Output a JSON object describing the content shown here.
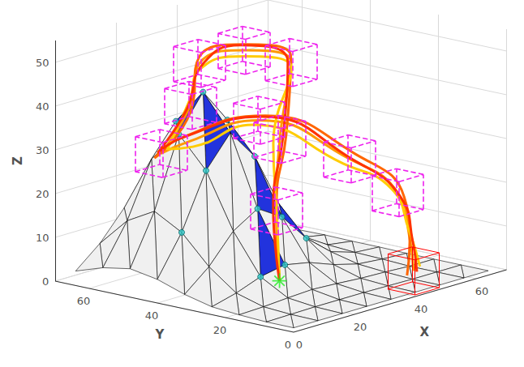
{
  "chart_data": {
    "type": "surface3d_trajectories",
    "xlabel": "X",
    "ylabel": "Y",
    "zlabel": "Z",
    "xlim": [
      0,
      70
    ],
    "ylim": [
      0,
      70
    ],
    "zlim": [
      0,
      55
    ],
    "xticks": [
      0,
      20,
      40,
      60
    ],
    "yticks": [
      0,
      20,
      40,
      60
    ],
    "zticks": [
      0,
      10,
      20,
      30,
      40,
      50
    ],
    "grid": true,
    "surface": {
      "color": "#f0f0f0",
      "x": [
        0,
        8,
        16,
        24,
        32,
        40,
        48,
        56,
        64
      ],
      "y": [
        0,
        8,
        16,
        24,
        32,
        40,
        48,
        56,
        64
      ],
      "z": [
        [
          1,
          1,
          1,
          1,
          1,
          1,
          1,
          1,
          1
        ],
        [
          1,
          1.1,
          1.2,
          1.2,
          1.2,
          1.1,
          1,
          1,
          1
        ],
        [
          1.3,
          1.5,
          1.9,
          2.2,
          1.9,
          1.5,
          1.3,
          1,
          1
        ],
        [
          1.8,
          3.3,
          5.4,
          6.5,
          5.4,
          3.3,
          1.8,
          1.3,
          1
        ],
        [
          3.3,
          8,
          14.5,
          18,
          14.5,
          8,
          3.3,
          1.5,
          1.1
        ],
        [
          5.4,
          14.5,
          27,
          34,
          27,
          14.5,
          5.4,
          1.9,
          1.1
        ],
        [
          6.5,
          18,
          34,
          42,
          34,
          18,
          6.5,
          2.2,
          1.2
        ],
        [
          5.4,
          14.5,
          27,
          34,
          27,
          14.5,
          5.4,
          1.9,
          1.1
        ],
        [
          3.3,
          8,
          14.5,
          18,
          14.5,
          8,
          3.3,
          1.5,
          1.1
        ]
      ]
    },
    "highlighted_cells": {
      "color": "#2233dd",
      "cells": [
        [
          2,
          3
        ],
        [
          3,
          4
        ],
        [
          2,
          5
        ],
        [
          3,
          5
        ],
        [
          4,
          4
        ],
        [
          3,
          6
        ],
        [
          2,
          6
        ]
      ]
    },
    "nodes": {
      "color": "#33cccc",
      "points": [
        [
          16,
          24
        ],
        [
          24,
          24
        ],
        [
          24,
          32
        ],
        [
          32,
          32
        ],
        [
          32,
          40
        ],
        [
          16,
          40
        ],
        [
          24,
          48
        ],
        [
          16,
          48
        ],
        [
          32,
          48
        ],
        [
          24,
          56
        ],
        [
          8,
          40
        ],
        [
          40,
          32
        ]
      ]
    },
    "series": [
      {
        "color": "#ff9900",
        "values": [
          [
            20,
            22,
            4
          ],
          [
            28,
            30,
            17
          ],
          [
            38,
            38,
            30
          ],
          [
            44,
            40,
            46
          ],
          [
            34,
            45,
            50
          ],
          [
            25,
            50,
            48
          ],
          [
            22,
            50,
            39
          ],
          [
            18,
            55,
            28
          ],
          [
            23,
            52,
            30
          ],
          [
            39,
            45,
            33
          ],
          [
            52,
            30,
            24
          ],
          [
            51,
            15,
            19
          ],
          [
            47,
            8,
            11
          ],
          [
            45,
            5,
            4
          ]
        ]
      },
      {
        "color": "#ff6600",
        "values": [
          [
            20,
            22,
            4
          ],
          [
            29,
            31,
            18
          ],
          [
            39,
            37,
            31
          ],
          [
            45,
            41,
            47
          ],
          [
            35,
            46,
            51
          ],
          [
            26,
            51,
            49
          ],
          [
            21,
            49,
            38
          ],
          [
            17,
            56,
            27
          ],
          [
            22,
            53,
            31
          ],
          [
            40,
            44,
            34
          ],
          [
            53,
            29,
            25
          ],
          [
            52,
            14,
            18
          ],
          [
            46,
            7,
            10
          ],
          [
            44,
            6,
            3
          ]
        ]
      },
      {
        "color": "#ffcc00",
        "values": [
          [
            20,
            22,
            4
          ],
          [
            27,
            29,
            16
          ],
          [
            37,
            39,
            29
          ],
          [
            43,
            39,
            45
          ],
          [
            33,
            44,
            49
          ],
          [
            24,
            49,
            47
          ],
          [
            23,
            51,
            40
          ],
          [
            19,
            54,
            29
          ],
          [
            24,
            51,
            29
          ],
          [
            38,
            46,
            32
          ],
          [
            51,
            31,
            23
          ],
          [
            50,
            16,
            20
          ],
          [
            48,
            9,
            12
          ],
          [
            46,
            4,
            5
          ]
        ]
      },
      {
        "color": "#ff3300",
        "values": [
          [
            20,
            22,
            4
          ],
          [
            28,
            31,
            18
          ],
          [
            38,
            37,
            31
          ],
          [
            44,
            41,
            46
          ],
          [
            34,
            46,
            51
          ],
          [
            25,
            49,
            48
          ],
          [
            22,
            51,
            38
          ],
          [
            18,
            56,
            28
          ],
          [
            23,
            53,
            31
          ],
          [
            39,
            44,
            34
          ],
          [
            52,
            29,
            24
          ],
          [
            51,
            14,
            18
          ],
          [
            47,
            7,
            10
          ],
          [
            45,
            4,
            4
          ]
        ]
      }
    ],
    "boxes": {
      "color": "#ee22ee",
      "line_style": "dashed",
      "size": 8,
      "centers": [
        [
          28,
          30,
          17
        ],
        [
          38,
          38,
          30
        ],
        [
          44,
          40,
          46
        ],
        [
          34,
          45,
          50
        ],
        [
          25,
          50,
          48
        ],
        [
          22,
          50,
          39
        ],
        [
          18,
          55,
          28
        ],
        [
          39,
          45,
          33
        ],
        [
          52,
          30,
          24
        ],
        [
          51,
          15,
          19
        ]
      ]
    },
    "target": {
      "color": "#ff0000",
      "line_style": "solid",
      "center": [
        45,
        5,
        4
      ],
      "size": 8
    },
    "start": {
      "color": "#22ee22",
      "marker": "asterisk",
      "position": [
        20,
        22,
        4
      ]
    }
  }
}
